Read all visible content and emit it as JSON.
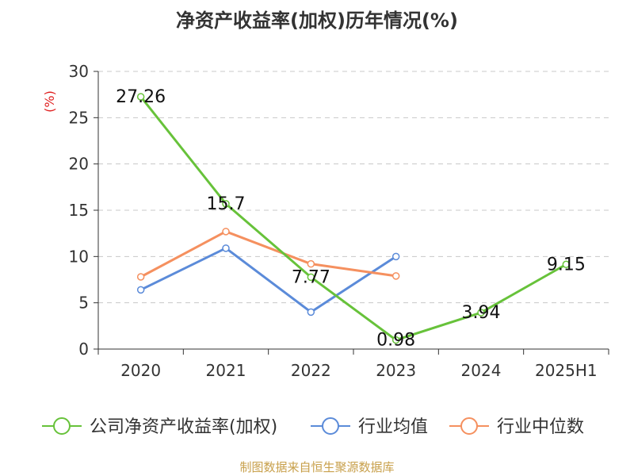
{
  "title": "净资产收益率(加权)历年情况(%)",
  "footer": "制图数据来自恒生聚源数据库",
  "chart_data": {
    "type": "line",
    "title": "净资产收益率(加权)历年情况(%)",
    "ylabel": "(%)",
    "xlabel": "",
    "categories": [
      "2020",
      "2021",
      "2022",
      "2023",
      "2024",
      "2025H1"
    ],
    "ylim": [
      0,
      30
    ],
    "yticks": [
      0,
      5,
      10,
      15,
      20,
      25,
      30
    ],
    "grid": true,
    "legend_position": "bottom",
    "series": [
      {
        "name": "公司净资产收益率(加权)",
        "color": "#67c23a",
        "values": [
          27.26,
          15.7,
          7.77,
          0.98,
          3.94,
          9.15
        ],
        "labels": [
          "27.26",
          "15.7",
          "7.77",
          "0.98",
          "3.94",
          "9.15"
        ]
      },
      {
        "name": "行业均值",
        "color": "#5b8bd9",
        "values": [
          6.4,
          10.9,
          4.0,
          10.0,
          null,
          null
        ]
      },
      {
        "name": "行业中位数",
        "color": "#f5905f",
        "values": [
          7.8,
          12.7,
          9.2,
          7.9,
          null,
          null
        ]
      }
    ]
  }
}
